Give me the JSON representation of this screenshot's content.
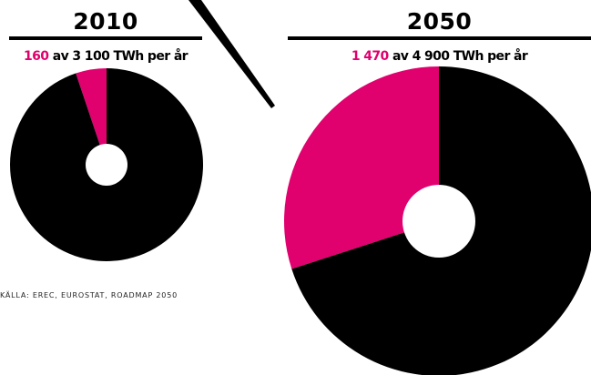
{
  "colors": {
    "accent": "#e0006e",
    "base": "#000000",
    "hole": "#ffffff"
  },
  "chart_data": [
    {
      "type": "pie",
      "title": "2010",
      "subtitle_value": "160",
      "subtitle_rest": "av 3 100 TWh per år",
      "unit": "TWh",
      "total": 3100,
      "slices": [
        {
          "value": 160,
          "color": "#e0006e"
        },
        {
          "value": 2940,
          "color": "#000000"
        }
      ]
    },
    {
      "type": "pie",
      "title": "2050",
      "subtitle_value": "1 470",
      "subtitle_rest": "av 4 900 TWh per år",
      "unit": "TWh",
      "total": 4900,
      "slices": [
        {
          "value": 1470,
          "color": "#e0006e"
        },
        {
          "value": 3430,
          "color": "#000000"
        }
      ]
    }
  ],
  "source": "KÄLLA: EREC, EUROSTAT, ROADMAP 2050"
}
